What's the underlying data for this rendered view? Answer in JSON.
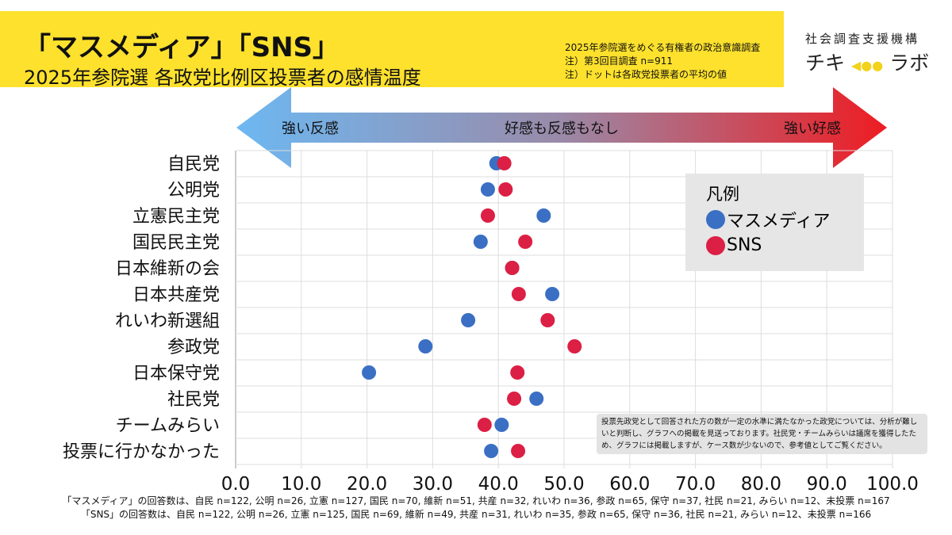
{
  "header": {
    "title": "「マスメディア」「SNS」",
    "subtitle": "2025年参院選 各政党比例区投票者の感情温度",
    "notes": [
      "2025年参院選をめぐる有権者の政治意識調査",
      "注）第3回目調査 n=911",
      "注）ドットは各政党投票者の平均の値"
    ]
  },
  "logo": {
    "org": "社会調査支援機構",
    "name_left": "チキ",
    "name_right": "ラボ"
  },
  "arrow": {
    "left": "強い反感",
    "center": "好感も反感もなし",
    "right": "強い好感"
  },
  "legend": {
    "title": "凡例",
    "items": [
      "マスメディア",
      "SNS"
    ]
  },
  "colors": {
    "mass": "#3a6fc4",
    "sns": "#dc1f44"
  },
  "note_box": "投票先政党として回答された方の数が一定の水準に満たなかった政党については、分析が難しいと判断し、グラフへの掲載を見送っております。社民党・チームみらいは議席を獲得したため、グラフには掲載しますが、ケース数が少ないので、参考値としてご覧ください。",
  "footer": [
    "「マスメディア」の回答数は、自民 n=122, 公明 n=26, 立憲 n=127, 国民 n=70,  維新 n=51, 共産 n=32, れいわ n=36, 参政 n=65, 保守 n=37, 社民 n=21, みらい n=12、未投票 n=167",
    "「SNS」の回答数は、自民 n=122, 公明 n=26, 立憲 n=125, 国民 n=69, 維新 n=49, 共産 n=31, れいわ n=35, 参政 n=65, 保守 n=36, 社民 n=21, みらい n=12、未投票 n=166"
  ],
  "chart_data": {
    "type": "scatter",
    "xlim": [
      0,
      100
    ],
    "xticks": [
      "0.0",
      "10.0",
      "20.0",
      "30.0",
      "40.0",
      "50.0",
      "60.0",
      "70.0",
      "80.0",
      "90.0",
      "100.0"
    ],
    "categories": [
      "自民党",
      "公明党",
      "立憲民主党",
      "国民民主党",
      "日本維新の会",
      "日本共産党",
      "れいわ新選組",
      "参政党",
      "日本保守党",
      "社民党",
      "チームみらい",
      "投票に行かなかった"
    ],
    "series": [
      {
        "name": "マスメディア",
        "values": [
          39.7,
          38.4,
          46.9,
          37.3,
          42.1,
          48.2,
          35.4,
          28.9,
          20.3,
          45.8,
          40.5,
          38.9
        ]
      },
      {
        "name": "SNS",
        "values": [
          40.9,
          41.1,
          38.4,
          44.1,
          42.1,
          43.1,
          47.5,
          51.6,
          42.9,
          42.4,
          37.9,
          43.0
        ]
      }
    ]
  }
}
